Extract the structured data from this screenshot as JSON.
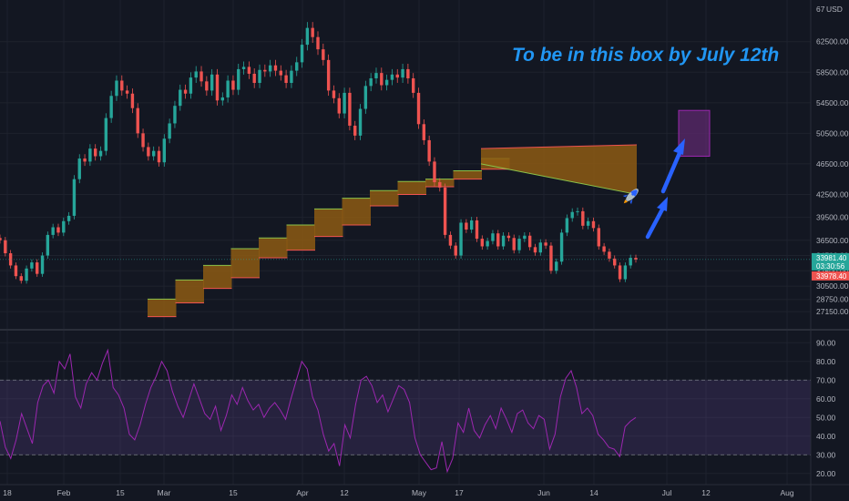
{
  "chart_data": [
    {
      "type": "candlestick",
      "price_axis_currency": "USD",
      "y_ticks": [
        27150,
        28750,
        30500,
        32500,
        34500,
        36500,
        39500,
        42500,
        46500,
        50500,
        54500,
        58500,
        62500
      ],
      "ylim": [
        25500,
        67000
      ],
      "top_partial_label": "67",
      "x_ticks": [
        "18",
        "Feb",
        "15",
        "Mar",
        "15",
        "Apr",
        "12",
        "May",
        "17",
        "Jun",
        "14",
        "Jul",
        "12",
        "Aug"
      ],
      "close_series": [
        36500,
        34800,
        33200,
        31800,
        31200,
        32800,
        33600,
        32100,
        34500,
        37200,
        38200,
        37500,
        39000,
        39700,
        44500,
        47200,
        46800,
        48500,
        47500,
        48200,
        52500,
        55400,
        57400,
        56100,
        55700,
        53800,
        50500,
        48700,
        47500,
        48200,
        46700,
        49800,
        51800,
        54100,
        56200,
        55700,
        57800,
        58600,
        57300,
        56100,
        58200,
        54800,
        55200,
        57400,
        56200,
        58900,
        59200,
        58300,
        57100,
        58800,
        58600,
        59400,
        58700,
        58100,
        57100,
        58700,
        59800,
        62100,
        64300,
        63100,
        61500,
        60100,
        56100,
        55100,
        53100,
        55800,
        51500,
        50200,
        53700,
        56700,
        57700,
        58400,
        56800,
        57500,
        58200,
        57800,
        58900,
        57700,
        55800,
        51700,
        49600,
        46800,
        44100,
        43400,
        37200,
        35800,
        34500,
        38800,
        37900,
        39100,
        36700,
        35700,
        36400,
        37400,
        35700,
        37100,
        36800,
        35200,
        36700,
        37100,
        35600,
        34900,
        36200,
        35800,
        32500,
        33700,
        37500,
        39400,
        40200,
        40300,
        38400,
        39000,
        38100,
        35700,
        35000,
        34100,
        33200,
        31400,
        33200,
        34200,
        33981
      ],
      "last_price_label": "33981.40",
      "countdown_label": "03:30:56",
      "secondary_price_label": "33978.40",
      "annotation": "To be in this box by July 12th",
      "target_box": {
        "x_date": "Jul 12",
        "y_range": [
          47500,
          53500
        ]
      },
      "channel": {
        "steps": [
          {
            "lower": 26500,
            "upper": 28800
          },
          {
            "lower": 28300,
            "upper": 31300
          },
          {
            "lower": 30200,
            "upper": 33200
          },
          {
            "lower": 31600,
            "upper": 35400
          },
          {
            "lower": 34200,
            "upper": 36800
          },
          {
            "lower": 35200,
            "upper": 38500
          },
          {
            "lower": 37000,
            "upper": 40600
          },
          {
            "lower": 38500,
            "upper": 42000
          },
          {
            "lower": 41000,
            "upper": 43000
          },
          {
            "lower": 42500,
            "upper": 44200
          },
          {
            "lower": 43500,
            "upper": 44500
          },
          {
            "lower": 44500,
            "upper": 45600
          },
          {
            "lower": 45800,
            "upper": 47200
          }
        ],
        "wedge": {
          "upper_start": 48500,
          "upper_end": 49000,
          "lower_start": 46500,
          "lower_end": 42500
        }
      }
    },
    {
      "type": "line",
      "indicator": "RSI",
      "y_ticks": [
        20,
        30,
        40,
        50,
        60,
        70,
        80,
        90
      ],
      "ylim": [
        15,
        95
      ],
      "bands": [
        30,
        70
      ],
      "values": [
        48,
        34,
        28,
        38,
        52,
        44,
        36,
        58,
        67,
        70,
        63,
        80,
        76,
        84,
        61,
        55,
        68,
        74,
        70,
        79,
        86,
        66,
        62,
        55,
        41,
        38,
        46,
        57,
        66,
        72,
        80,
        75,
        64,
        56,
        50,
        59,
        68,
        60,
        52,
        49,
        56,
        43,
        51,
        62,
        57,
        66,
        59,
        54,
        57,
        50,
        55,
        58,
        54,
        49,
        60,
        70,
        80,
        76,
        61,
        54,
        41,
        32,
        36,
        24,
        46,
        39,
        57,
        70,
        72,
        67,
        58,
        62,
        53,
        60,
        67,
        65,
        58,
        39,
        30,
        26,
        22,
        23,
        37,
        21,
        28,
        47,
        42,
        55,
        43,
        39,
        46,
        51,
        44,
        55,
        49,
        42,
        52,
        54,
        47,
        44,
        51,
        49,
        33,
        41,
        61,
        71,
        75,
        66,
        52,
        55,
        51,
        41,
        38,
        34,
        33,
        29,
        45,
        48,
        50
      ]
    }
  ]
}
